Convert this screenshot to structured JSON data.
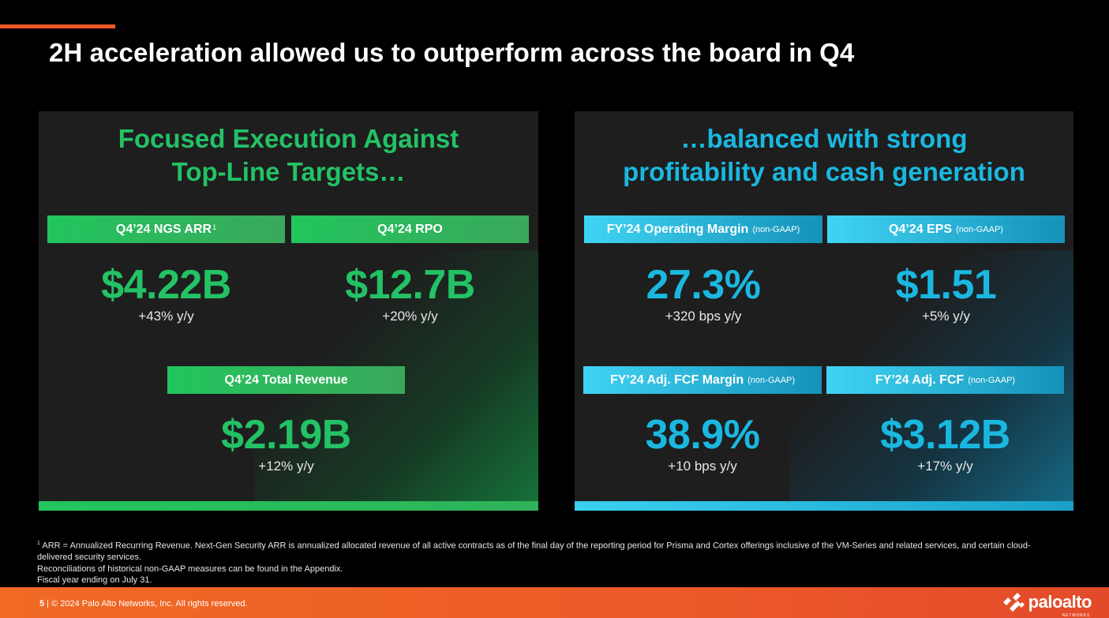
{
  "title": "2H acceleration allowed us to outperform across the board in Q4",
  "left_panel": {
    "heading_line1": "Focused Execution Against",
    "heading_line2": "Top-Line Targets…",
    "metrics": [
      {
        "label": "Q4’24 NGS ARR",
        "label_sup": "1",
        "value": "$4.22B",
        "delta": "+43% y/y"
      },
      {
        "label": "Q4’24 RPO",
        "value": "$12.7B",
        "delta": "+20% y/y"
      },
      {
        "label": "Q4’24 Total Revenue",
        "value": "$2.19B",
        "delta": "+12% y/y"
      }
    ]
  },
  "right_panel": {
    "heading_line1": "…balanced with strong",
    "heading_line2": "profitability and cash generation",
    "metrics": [
      {
        "label": "FY’24 Operating Margin",
        "tag": "(non-GAAP)",
        "value": "27.3%",
        "delta": "+320 bps y/y"
      },
      {
        "label": "Q4’24 EPS",
        "tag": "(non-GAAP)",
        "value": "$1.51",
        "delta": "+5% y/y"
      },
      {
        "label": "FY’24 Adj. FCF Margin",
        "tag": "(non-GAAP)",
        "value": "38.9%",
        "delta": "+10 bps y/y"
      },
      {
        "label": "FY’24 Adj. FCF",
        "tag": "(non-GAAP)",
        "value": "$3.12B",
        "delta": "+17% y/y"
      }
    ]
  },
  "footnotes": {
    "sup": "1",
    "line1": " ARR = Annualized Recurring Revenue. Next-Gen Security ARR is annualized allocated revenue of all active contracts as of the final day of the reporting period for Prisma and Cortex offerings inclusive of the VM-Series and related services, and certain cloud-delivered security services.",
    "line2": "Reconciliations of historical non-GAAP measures can be found in the Appendix.",
    "line3": "Fiscal year ending on July 31."
  },
  "footer": {
    "page_number": "5",
    "separator": " | ",
    "copyright": "© 2024 Palo Alto Networks, Inc. All rights reserved.",
    "logo_text": "paloalto",
    "logo_sub": "NETWORKS"
  },
  "colors": {
    "accent_orange": "#ef5a28",
    "green": "#23c265",
    "cyan": "#1ab8e0"
  }
}
